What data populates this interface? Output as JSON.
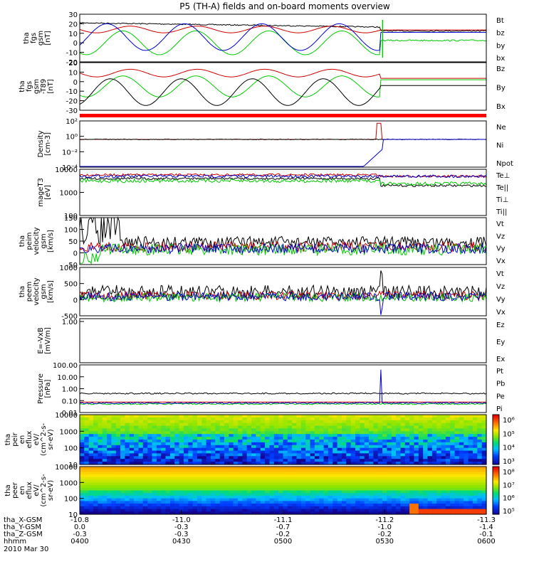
{
  "title": "P5 (TH-A) fields and on-board moments overview",
  "chart_data": [
    {
      "type": "line",
      "ylabel": [
        "tha",
        "fgs",
        "gsm",
        "[nT]"
      ],
      "ylim": [
        -20,
        30
      ],
      "yticks": [
        "30",
        "20",
        "10",
        "0",
        "-10",
        "-20"
      ],
      "series": [
        {
          "name": "Bt",
          "color": "#000000"
        },
        {
          "name": "bz",
          "color": "#cc0000"
        },
        {
          "name": "by",
          "color": "#00cc00"
        },
        {
          "name": "bx",
          "color": "#0000cc"
        }
      ]
    },
    {
      "type": "line",
      "ylabel": [
        "tha",
        "fgs",
        "gsm",
        "-T89",
        "[nT]"
      ],
      "ylim": [
        -35,
        20
      ],
      "yticks": [
        "20",
        "10",
        "0",
        "-10",
        "-20",
        "-30"
      ],
      "series": [
        {
          "name": "Bz",
          "color": "#cc0000"
        },
        {
          "name": "By",
          "color": "#00cc00"
        },
        {
          "name": "Bx",
          "color": "#000000"
        }
      ]
    },
    {
      "type": "line",
      "ylabel": [
        "Density",
        "[cm-3]"
      ],
      "scale": "log",
      "yticks": [
        "10²",
        "10⁰",
        "10⁻²",
        "10⁻⁴"
      ],
      "series": [
        {
          "name": "Ne",
          "color": "#cc0000"
        },
        {
          "name": "Ni",
          "color": "#000000"
        },
        {
          "name": "Npot",
          "color": "#0000cc"
        }
      ]
    },
    {
      "type": "line",
      "ylabel": [
        "mageT3",
        "[eV]"
      ],
      "scale": "log",
      "yticks": [
        "10000",
        "1000",
        "100"
      ],
      "series": [
        {
          "name": "Te⊥",
          "color": "#cc0000"
        },
        {
          "name": "Te||",
          "color": "#000000"
        },
        {
          "name": "Ti⊥",
          "color": "#0000cc"
        },
        {
          "name": "Ti||",
          "color": "#00cc00"
        }
      ]
    },
    {
      "type": "line",
      "ylabel": [
        "tha",
        "peim",
        "velocity",
        "gsm",
        "[km/s]"
      ],
      "ylim": [
        -50,
        150
      ],
      "yticks": [
        "150",
        "100",
        "50",
        "0",
        "-50"
      ],
      "series": [
        {
          "name": "Vt",
          "color": "#000000"
        },
        {
          "name": "Vz",
          "color": "#cc0000"
        },
        {
          "name": "Vy",
          "color": "#00cc00"
        },
        {
          "name": "Vx",
          "color": "#0000cc"
        }
      ]
    },
    {
      "type": "line",
      "ylabel": [
        "tha",
        "peem",
        "velocity",
        "gsm",
        "[km/s]"
      ],
      "ylim": [
        -500,
        1000
      ],
      "yticks": [
        "1000",
        "500",
        "0",
        "-500"
      ],
      "series": [
        {
          "name": "Vt",
          "color": "#000000"
        },
        {
          "name": "Vz",
          "color": "#cc0000"
        },
        {
          "name": "Vy",
          "color": "#00cc00"
        },
        {
          "name": "Vx",
          "color": "#0000cc"
        }
      ]
    },
    {
      "type": "line",
      "ylabel": [
        "E=-VxB",
        "[mV/m]"
      ],
      "yticks": [
        "1.00"
      ],
      "series": [
        {
          "name": "Ez",
          "color": "#cc0000"
        },
        {
          "name": "Ey",
          "color": "#00cc00"
        },
        {
          "name": "Ex",
          "color": "#0000cc"
        }
      ]
    },
    {
      "type": "line",
      "ylabel": [
        "Pressure",
        "[nPa]"
      ],
      "scale": "log",
      "yticks": [
        "100.00",
        "10.00",
        "1.00",
        "0.10",
        "0.01"
      ],
      "series": [
        {
          "name": "Pt",
          "color": "#000000"
        },
        {
          "name": "Pb",
          "color": "#cc0000"
        },
        {
          "name": "Pe",
          "color": "#00cc00"
        },
        {
          "name": "Pi",
          "color": "#0000cc"
        }
      ]
    },
    {
      "type": "heatmap",
      "ylabel": [
        "tha",
        "peir",
        "en",
        "eflux",
        "eV/",
        "(cm^2-s-",
        "sr-eV)"
      ],
      "yticks": [
        "10000",
        "1000",
        "100",
        "10"
      ],
      "colorbar_ticks": [
        "10⁶",
        "10⁵",
        "10⁴",
        "10³"
      ]
    },
    {
      "type": "heatmap",
      "ylabel": [
        "tha",
        "peer",
        "en",
        "eflux",
        "eV/",
        "(cm^2-s-",
        "sr-eV)"
      ],
      "yticks": [
        "10000",
        "1000",
        "100",
        "10"
      ],
      "colorbar_ticks": [
        "10⁸",
        "10⁷",
        "10⁶",
        "10⁵"
      ]
    }
  ],
  "xaxis": {
    "row_labels": [
      "tha_X-GSM",
      "tha_Y-GSM",
      "tha_Z-GSM",
      "hhmm",
      "2010 Mar 30"
    ],
    "columns": [
      {
        "x": "-10.8",
        "y": "0.0",
        "z": "-0.3",
        "t": "0400"
      },
      {
        "x": "-11.0",
        "y": "-0.3",
        "z": "-0.3",
        "t": "0430"
      },
      {
        "x": "-11.1",
        "y": "-0.7",
        "z": "-0.2",
        "t": "0500"
      },
      {
        "x": "-11.2",
        "y": "-1.0",
        "z": "-0.2",
        "t": "0530"
      },
      {
        "x": "-11.3",
        "y": "-1.4",
        "z": "-0.1",
        "t": "0600"
      }
    ]
  }
}
